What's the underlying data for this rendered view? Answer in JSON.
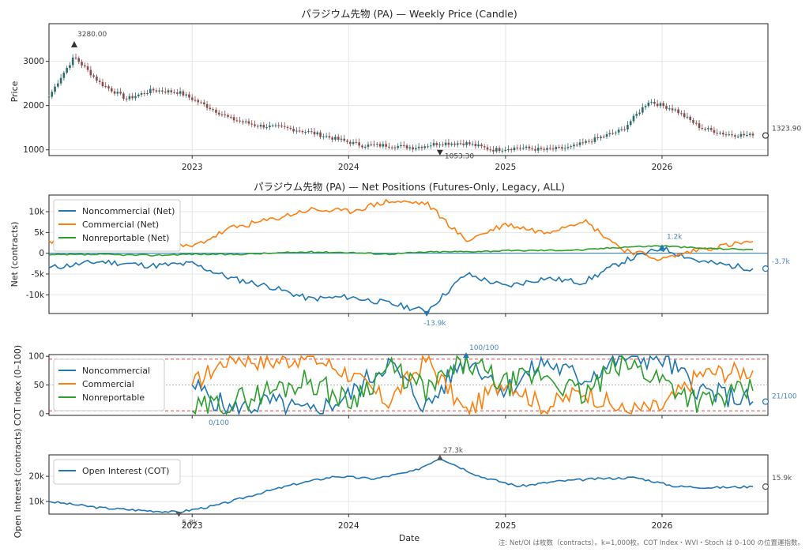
{
  "footnote": "注: Net/OI は枚数（contracts）。k=1,000枚。COT Index・WVI・Stoch は 0–100 の位置運指数。",
  "xlabel": "Date",
  "xticks": [
    "2023",
    "2024",
    "2025",
    "2026"
  ],
  "colors": {
    "noncommercial": "#1f77b4",
    "commercial": "#ff7f0e",
    "nonreportable": "#2ca02c",
    "candle_up": "#2f6b6b",
    "candle_down": "#8b4a4a",
    "ref_red": "#d62728"
  },
  "chart_data": [
    {
      "type": "candlestick",
      "title": "パラジウム先物 (PA) — Weekly Price (Candle)",
      "ylabel": "Price",
      "ylim": [
        870,
        3850
      ],
      "yticks": [
        "1000",
        "2000",
        "3000"
      ],
      "grid": true,
      "annotations": {
        "max_label": "3280.00",
        "min_label": "1053.30",
        "last_label": "1323.90"
      },
      "x": [
        "2022-02",
        "2022-03",
        "2022-04",
        "2022-06",
        "2022-08",
        "2022-10",
        "2022-12",
        "2023-02",
        "2023-04",
        "2023-06",
        "2023-08",
        "2023-10",
        "2023-12",
        "2024-02",
        "2024-04",
        "2024-06",
        "2024-08",
        "2024-10",
        "2024-12",
        "2025-02",
        "2025-04",
        "2025-06",
        "2025-08",
        "2025-10",
        "2025-12",
        "2026-02",
        "2026-04",
        "2026-06",
        "2026-08"
      ],
      "close": [
        2200,
        2650,
        3100,
        2500,
        2150,
        2350,
        2300,
        2000,
        1700,
        1550,
        1500,
        1400,
        1250,
        1100,
        1100,
        1050,
        1150,
        1150,
        1000,
        1050,
        1000,
        1050,
        1250,
        1450,
        2100,
        1900,
        1500,
        1350,
        1323.9
      ]
    },
    {
      "type": "line",
      "title": "パラジウム先物 (PA) — Net Positions (Futures-Only, Legacy, ALL)",
      "ylabel": "Net (contracts)",
      "ylim": [
        -14500,
        14000
      ],
      "yticks": [
        "-10k",
        "-5k",
        "0",
        "5k",
        "10k"
      ],
      "legend": "top-left",
      "annotations": {
        "max_label": "1.2k",
        "min_label": "-13.9k",
        "last_label": "-3.7k"
      },
      "x": [
        "2022-02",
        "2022-06",
        "2022-10",
        "2023-01",
        "2023-04",
        "2023-07",
        "2023-10",
        "2024-01",
        "2024-04",
        "2024-07",
        "2024-10",
        "2025-01",
        "2025-04",
        "2025-07",
        "2025-10",
        "2026-01",
        "2026-04",
        "2026-08"
      ],
      "series": [
        {
          "name": "Noncommercial (Net)",
          "values": [
            -3500,
            -2000,
            -3000,
            -2500,
            -6000,
            -8000,
            -11000,
            -10500,
            -12000,
            -13900,
            -5000,
            -8000,
            -6000,
            -7000,
            -2000,
            1200,
            -2000,
            -3700
          ]
        },
        {
          "name": "Commercial (Net)",
          "values": [
            3000,
            1500,
            2000,
            1500,
            6000,
            8000,
            10500,
            10000,
            12500,
            12000,
            3000,
            7000,
            5000,
            8000,
            1000,
            -1500,
            1000,
            2800
          ]
        },
        {
          "name": "Nonreportable (Net)",
          "values": [
            -400,
            -300,
            -500,
            -200,
            -300,
            0,
            300,
            200,
            -200,
            300,
            400,
            600,
            700,
            800,
            1500,
            1800,
            1200,
            900
          ]
        }
      ]
    },
    {
      "type": "line",
      "ylabel": "COT Index (0–100)",
      "ylim": [
        -3,
        103
      ],
      "yticks": [
        "0",
        "50",
        "100"
      ],
      "legend": "top-left",
      "reference_lines": [
        5,
        50,
        95
      ],
      "annotations": {
        "max_label": "100/100",
        "min_label": "0/100",
        "last_label": "21/100"
      },
      "x": [
        "2023-01",
        "2023-04",
        "2023-07",
        "2023-10",
        "2024-01",
        "2024-04",
        "2024-07",
        "2024-10",
        "2025-01",
        "2025-04",
        "2025-07",
        "2025-10",
        "2026-01",
        "2026-04",
        "2026-08"
      ],
      "series": [
        {
          "name": "Noncommercial",
          "values": [
            50,
            5,
            20,
            0,
            30,
            90,
            10,
            100,
            40,
            90,
            60,
            100,
            95,
            40,
            21
          ]
        },
        {
          "name": "Commercial",
          "values": [
            50,
            100,
            90,
            100,
            70,
            20,
            95,
            0,
            60,
            10,
            40,
            5,
            10,
            70,
            75
          ]
        },
        {
          "name": "Nonreportable",
          "values": [
            5,
            20,
            40,
            60,
            20,
            80,
            40,
            90,
            50,
            70,
            30,
            90,
            60,
            20,
            40
          ]
        }
      ]
    },
    {
      "type": "line",
      "ylabel": "Open Interest (contracts)",
      "ylim": [
        5000,
        28500
      ],
      "yticks": [
        "10k",
        "20k"
      ],
      "legend": "top-left",
      "annotations": {
        "max_label": "27.3k",
        "min_label": "5.8k",
        "last_label": "15.9k"
      },
      "x": [
        "2022-02",
        "2022-06",
        "2022-09",
        "2022-12",
        "2023-03",
        "2023-06",
        "2023-09",
        "2023-12",
        "2024-03",
        "2024-06",
        "2024-08",
        "2024-11",
        "2025-02",
        "2025-05",
        "2025-08",
        "2025-11",
        "2026-02",
        "2026-05",
        "2026-08"
      ],
      "series": [
        {
          "name": "Open Interest (COT)",
          "values": [
            10000,
            7500,
            6500,
            5800,
            8500,
            13000,
            17000,
            20000,
            19000,
            22000,
            27300,
            20000,
            16000,
            18000,
            19000,
            19500,
            16000,
            15500,
            15900
          ]
        }
      ]
    }
  ]
}
